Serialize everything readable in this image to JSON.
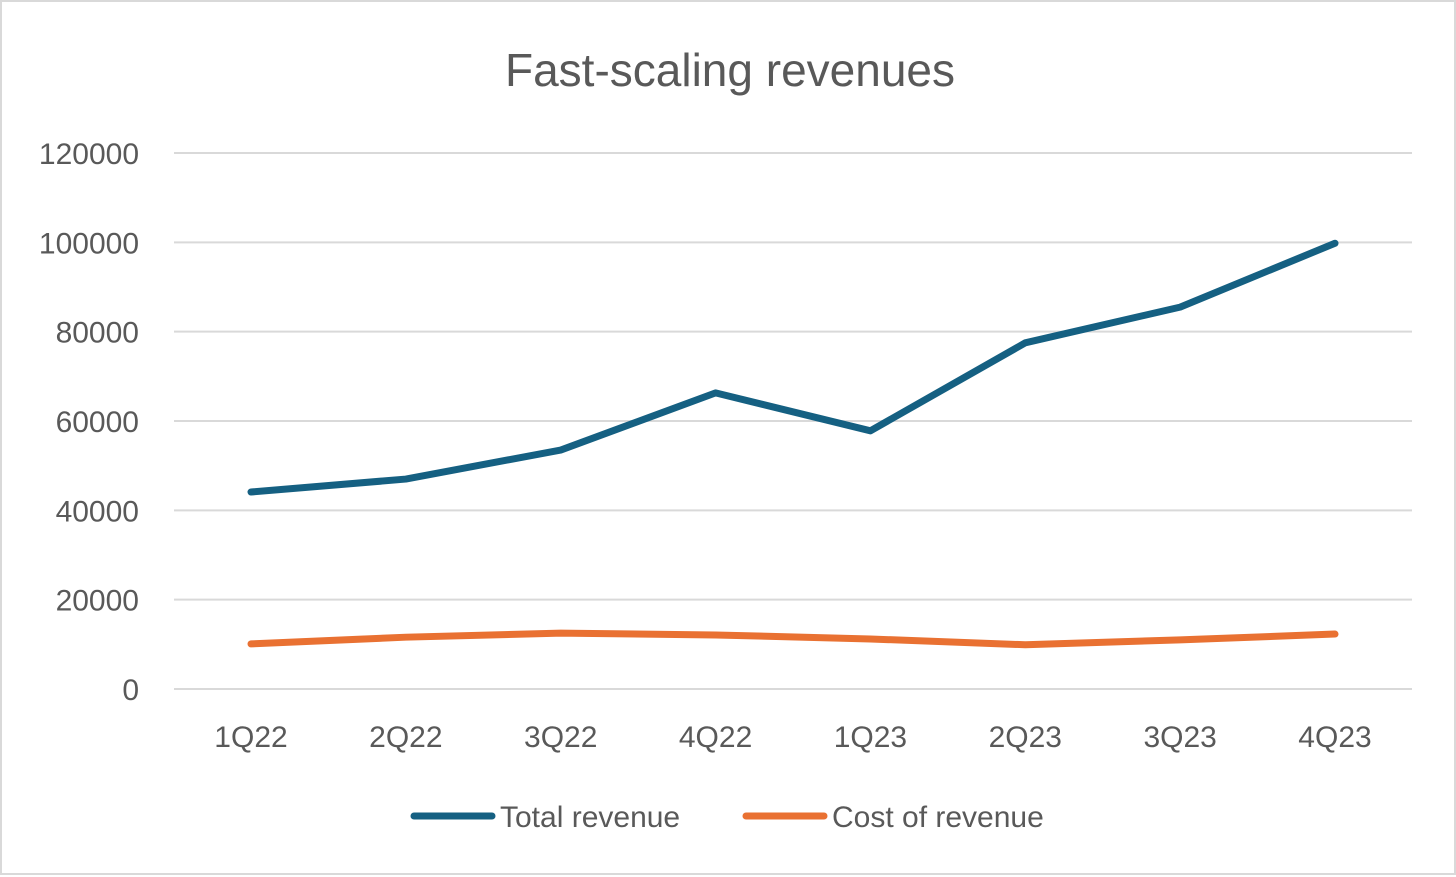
{
  "chart_data": {
    "type": "line",
    "title": "Fast-scaling revenues",
    "xlabel": "",
    "ylabel": "",
    "categories": [
      "1Q22",
      "2Q22",
      "3Q22",
      "4Q22",
      "1Q23",
      "2Q23",
      "3Q23",
      "4Q23"
    ],
    "ylim": [
      0,
      120000
    ],
    "yticks": [
      "0",
      "20000",
      "40000",
      "60000",
      "80000",
      "100000",
      "120000"
    ],
    "grid": true,
    "legend_position": "bottom",
    "series": [
      {
        "name": "Total revenue",
        "color": "#156082",
        "values": [
          44100,
          47000,
          53500,
          66300,
          57800,
          77500,
          85500,
          99800
        ]
      },
      {
        "name": "Cost of revenue",
        "color": "#E97132",
        "values": [
          10100,
          11600,
          12500,
          12100,
          11200,
          9900,
          11000,
          12300
        ]
      }
    ]
  }
}
